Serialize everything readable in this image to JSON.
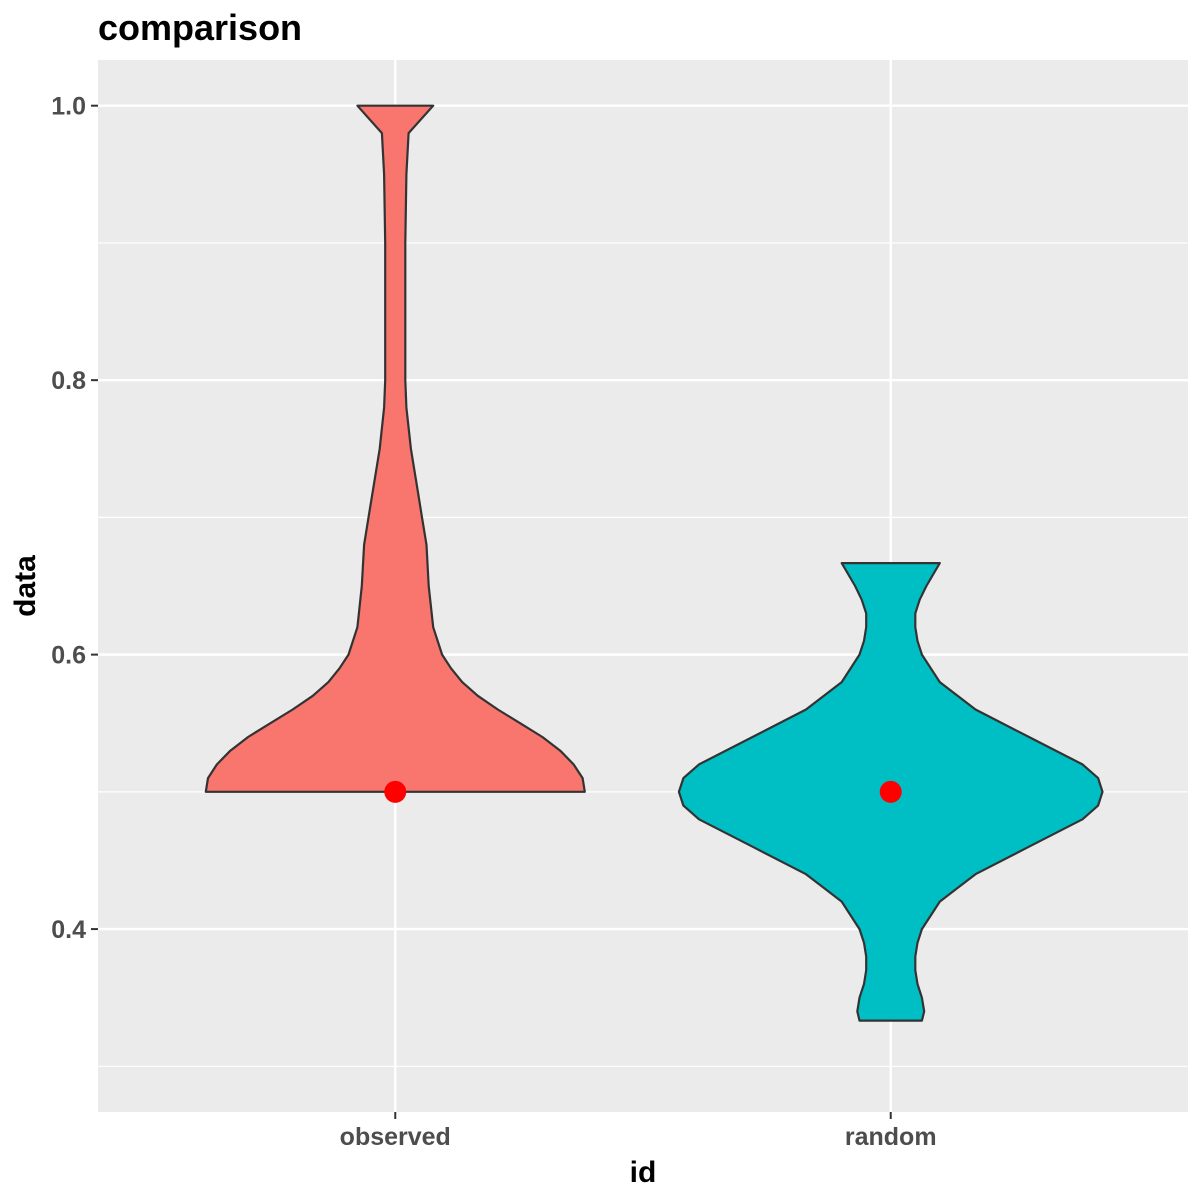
{
  "chart_data": {
    "type": "violin",
    "title": "comparison",
    "xlabel": "id",
    "ylabel": "data",
    "categories": [
      "observed",
      "random"
    ],
    "ylim": [
      0.2667,
      1.0333
    ],
    "yticks": [
      "0.4",
      "0.6",
      "0.8",
      "1.0"
    ],
    "ytick_values": [
      0.4,
      0.6,
      0.8,
      1.0
    ],
    "yminor_values": [
      0.3,
      0.5,
      0.7,
      0.9
    ],
    "grid": true,
    "legend": "none",
    "series": [
      {
        "category": "observed",
        "fill": "#f8766d",
        "min": 0.5,
        "max": 1.0,
        "median": 0.5,
        "density_profile": [
          [
            0.5,
            0.85
          ],
          [
            0.51,
            0.84
          ],
          [
            0.52,
            0.8
          ],
          [
            0.53,
            0.74
          ],
          [
            0.54,
            0.66
          ],
          [
            0.55,
            0.56
          ],
          [
            0.56,
            0.46
          ],
          [
            0.57,
            0.37
          ],
          [
            0.58,
            0.3
          ],
          [
            0.59,
            0.25
          ],
          [
            0.6,
            0.21
          ],
          [
            0.62,
            0.17
          ],
          [
            0.65,
            0.15
          ],
          [
            0.68,
            0.14
          ],
          [
            0.7,
            0.12
          ],
          [
            0.72,
            0.1
          ],
          [
            0.75,
            0.07
          ],
          [
            0.78,
            0.05
          ],
          [
            0.8,
            0.045
          ],
          [
            0.85,
            0.045
          ],
          [
            0.9,
            0.045
          ],
          [
            0.95,
            0.05
          ],
          [
            0.98,
            0.06
          ],
          [
            1.0,
            0.17
          ]
        ]
      },
      {
        "category": "random",
        "fill": "#00bfc4",
        "min": 0.3333,
        "max": 0.6667,
        "median": 0.5,
        "density_profile": [
          [
            0.3333,
            0.14
          ],
          [
            0.34,
            0.15
          ],
          [
            0.35,
            0.14
          ],
          [
            0.36,
            0.12
          ],
          [
            0.37,
            0.11
          ],
          [
            0.38,
            0.11
          ],
          [
            0.39,
            0.12
          ],
          [
            0.4,
            0.14
          ],
          [
            0.42,
            0.22
          ],
          [
            0.44,
            0.38
          ],
          [
            0.46,
            0.62
          ],
          [
            0.48,
            0.86
          ],
          [
            0.49,
            0.93
          ],
          [
            0.5,
            0.95
          ],
          [
            0.51,
            0.93
          ],
          [
            0.52,
            0.86
          ],
          [
            0.54,
            0.62
          ],
          [
            0.56,
            0.38
          ],
          [
            0.58,
            0.22
          ],
          [
            0.6,
            0.14
          ],
          [
            0.61,
            0.12
          ],
          [
            0.62,
            0.11
          ],
          [
            0.63,
            0.11
          ],
          [
            0.64,
            0.13
          ],
          [
            0.65,
            0.16
          ],
          [
            0.6667,
            0.22
          ]
        ]
      }
    ]
  }
}
